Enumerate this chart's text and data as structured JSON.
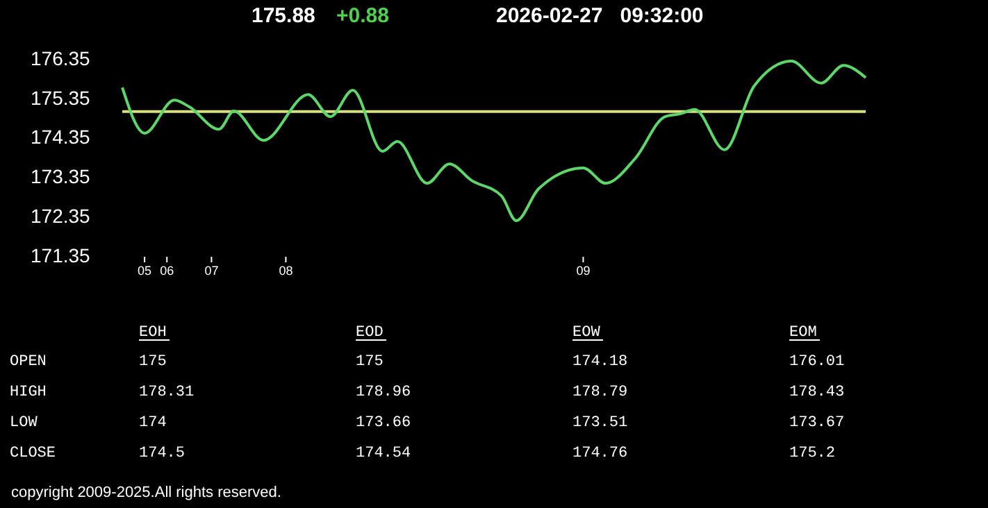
{
  "chart_data": [
    {
      "type": "line",
      "title": "175.88",
      "subtitle": "+0.88",
      "annotations": [
        "2026-02-27   09:32:00"
      ],
      "categories": [
        null,
        null,
        null,
        "05",
        null,
        null,
        "06",
        null,
        null,
        null,
        null,
        null,
        "07",
        null,
        null,
        null,
        null,
        null,
        null,
        null,
        null,
        null,
        "08",
        null,
        null,
        null,
        null,
        null,
        null,
        null,
        null,
        null,
        null,
        null,
        null,
        null,
        null,
        null,
        null,
        null,
        null,
        null,
        null,
        null,
        null,
        null,
        null,
        null,
        null,
        null,
        null,
        null,
        null,
        null,
        null,
        null,
        null,
        null,
        null,
        null,
        null,
        null,
        "09",
        null,
        null,
        null,
        null,
        null,
        null,
        null,
        null,
        null,
        null,
        null,
        null,
        null,
        null,
        null,
        null,
        null,
        null,
        null,
        null,
        null,
        null,
        null,
        null,
        null,
        null,
        null,
        null,
        null,
        null,
        null,
        null,
        null,
        null,
        null,
        null,
        null,
        null
      ],
      "series": [
        {
          "color": "#5ed66a",
          "values": [
            175.61,
            null,
            null,
            174.45,
            null,
            null,
            null,
            175.29,
            null,
            175.12,
            null,
            null,
            null,
            174.55,
            null,
            175.01,
            null,
            null,
            null,
            174.27,
            null,
            null,
            null,
            null,
            null,
            175.43,
            null,
            null,
            174.87,
            null,
            null,
            175.54,
            null,
            null,
            null,
            173.99,
            null,
            174.24,
            null,
            null,
            null,
            173.18,
            null,
            null,
            173.67,
            null,
            null,
            173.25,
            null,
            null,
            null,
            172.86,
            null,
            172.23,
            null,
            null,
            173.04,
            null,
            null,
            null,
            null,
            null,
            173.57,
            null,
            null,
            173.18,
            null,
            null,
            null,
            173.81,
            null,
            null,
            null,
            174.87,
            null,
            174.94,
            null,
            175.05,
            null,
            null,
            null,
            174.03,
            null,
            null,
            null,
            175.65,
            null,
            null,
            null,
            null,
            176.28,
            null,
            null,
            null,
            175.72,
            null,
            null,
            176.17,
            null,
            null,
            175.86
          ]
        }
      ],
      "ylim": [
        171.35,
        176.35
      ],
      "yticks": [
        171.35,
        172.35,
        173.35,
        174.35,
        175.35,
        176.35
      ],
      "ref_lines": [
        {
          "axis": "y",
          "value": 175.0,
          "color": "#d6e07e"
        }
      ],
      "grid": false,
      "marker": "none",
      "line_style": "solid"
    },
    {
      "type": "other",
      "categories": [
        "EOH",
        "EOD",
        "EOW",
        "EOM"
      ],
      "y_categories": [
        "OPEN",
        "HIGH",
        "LOW",
        "CLOSE"
      ],
      "cells": [
        [
          "175",
          "175",
          "174.18",
          "176.01"
        ],
        [
          "178.31",
          "178.96",
          "178.79",
          "178.43"
        ],
        [
          "174",
          "173.66",
          "173.51",
          "173.67"
        ],
        [
          "174.5",
          "174.54",
          "174.76",
          "175.2"
        ]
      ],
      "annotations": [
        "copyright 2009-2025.All rights reserved."
      ]
    }
  ]
}
